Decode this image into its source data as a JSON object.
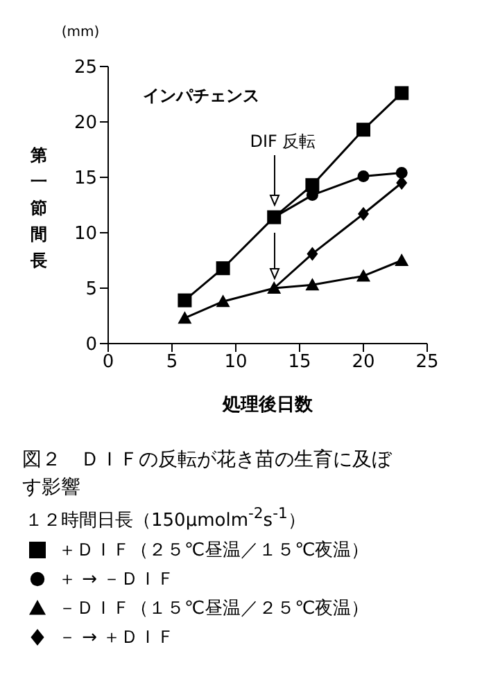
{
  "chart_data": {
    "type": "line",
    "title": "図２　ＤＩＦの反転が花き苗の生育に及ぼす影響",
    "subtitle": "１２時間日長（150μmolm$^{-2}$s$^{-1}$）",
    "xlabel": "処理後日数",
    "ylabel": "第一節間長",
    "annotations": [
      "インパチェンス",
      "(mm)",
      "DIF 反転"
    ],
    "x": [
      6,
      9,
      13,
      16,
      20,
      23
    ],
    "series": [
      {
        "name": "＋ＤＩＦ（２５℃昼温／１５℃夜温）",
        "color": "#000000",
        "marker": "square",
        "values": [
          3.9,
          6.8,
          11.4,
          14.3,
          19.3,
          22.6
        ]
      },
      {
        "name": "＋ → －ＤＩＦ",
        "color": "#000000",
        "marker": "circle",
        "values": [
          null,
          null,
          11.4,
          13.4,
          15.1,
          15.4
        ]
      },
      {
        "name": "－ＤＩＦ（１５℃昼温／２５℃夜温）",
        "color": "#000000",
        "marker": "triangle",
        "values": [
          2.3,
          3.8,
          5.0,
          5.3,
          6.1,
          7.5
        ]
      },
      {
        "name": "－ → ＋ＤＩＦ",
        "color": "#000000",
        "marker": "diamond",
        "values": [
          null,
          null,
          5.0,
          8.1,
          11.7,
          14.5
        ]
      }
    ],
    "xlim": [
      0,
      25
    ],
    "xticks": [
      0,
      5,
      10,
      15,
      20,
      25
    ],
    "ylim": [
      0,
      25
    ],
    "yticks": [
      0,
      5,
      10,
      15,
      20,
      25
    ],
    "grid": false,
    "legend": "bottom"
  }
}
